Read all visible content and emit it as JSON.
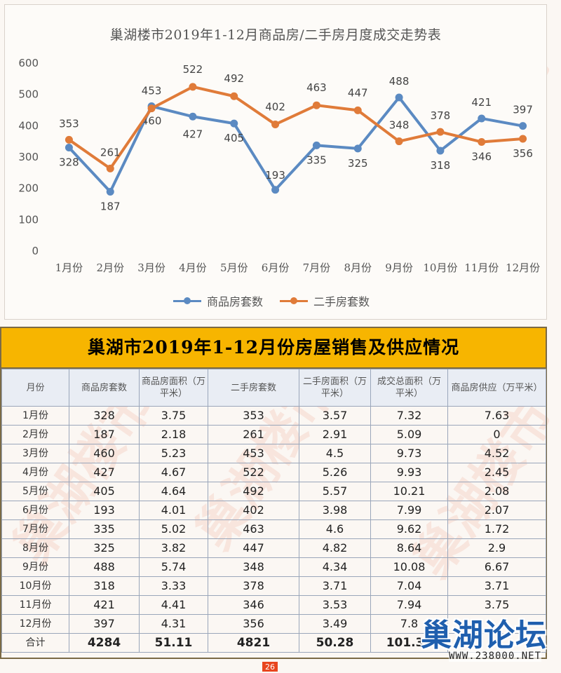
{
  "chart_data": {
    "type": "line",
    "title": "巢湖楼市2019年1-12月商品房/二手房月度成交走势表",
    "categories": [
      "1月份",
      "2月份",
      "3月份",
      "4月份",
      "5月份",
      "6月份",
      "7月份",
      "8月份",
      "9月份",
      "10月份",
      "11月份",
      "12月份"
    ],
    "ylim": [
      0,
      600
    ],
    "yticks": [
      0,
      100,
      200,
      300,
      400,
      500,
      600
    ],
    "grid": false,
    "legend_position": "bottom",
    "series": [
      {
        "name": "商品房套数",
        "color": "#5b8ac2",
        "values": [
          328,
          187,
          460,
          427,
          405,
          193,
          335,
          325,
          488,
          318,
          421,
          397
        ]
      },
      {
        "name": "二手房套数",
        "color": "#e07b39",
        "values": [
          353,
          261,
          453,
          522,
          492,
          402,
          463,
          447,
          348,
          378,
          346,
          356
        ]
      }
    ]
  },
  "table": {
    "title": "巢湖市2019年1-12月份房屋销售及供应情况",
    "headers": [
      "月份",
      "商品房套数",
      "商品房面积（万平米）",
      "二手房套数",
      "二手房面积（万平米）",
      "成交总面积（万平米）",
      "商品房供应（万平米）"
    ],
    "rows": [
      [
        "1月份",
        "328",
        "3.75",
        "353",
        "3.57",
        "7.32",
        "7.63"
      ],
      [
        "2月份",
        "187",
        "2.18",
        "261",
        "2.91",
        "5.09",
        "0"
      ],
      [
        "3月份",
        "460",
        "5.23",
        "453",
        "4.5",
        "9.73",
        "4.52"
      ],
      [
        "4月份",
        "427",
        "4.67",
        "522",
        "5.26",
        "9.93",
        "2.45"
      ],
      [
        "5月份",
        "405",
        "4.64",
        "492",
        "5.57",
        "10.21",
        "2.08"
      ],
      [
        "6月份",
        "193",
        "4.01",
        "402",
        "3.98",
        "7.99",
        "2.07"
      ],
      [
        "7月份",
        "335",
        "5.02",
        "463",
        "4.6",
        "9.62",
        "1.72"
      ],
      [
        "8月份",
        "325",
        "3.82",
        "447",
        "4.82",
        "8.64",
        "2.9"
      ],
      [
        "9月份",
        "488",
        "5.74",
        "348",
        "4.34",
        "10.08",
        "6.67"
      ],
      [
        "10月份",
        "318",
        "3.33",
        "378",
        "3.71",
        "7.04",
        "3.71"
      ],
      [
        "11月份",
        "421",
        "4.41",
        "346",
        "3.53",
        "7.94",
        "3.75"
      ],
      [
        "12月份",
        "397",
        "4.31",
        "356",
        "3.49",
        "7.8",
        ""
      ]
    ],
    "total": [
      "合计",
      "4284",
      "51.11",
      "4821",
      "50.28",
      "101.39",
      ""
    ]
  },
  "page_number": "26",
  "logo": {
    "name": "巢湖论坛",
    "url": "WWW.238000.NET"
  },
  "watermark": {
    "text": "巢湖楼市"
  }
}
